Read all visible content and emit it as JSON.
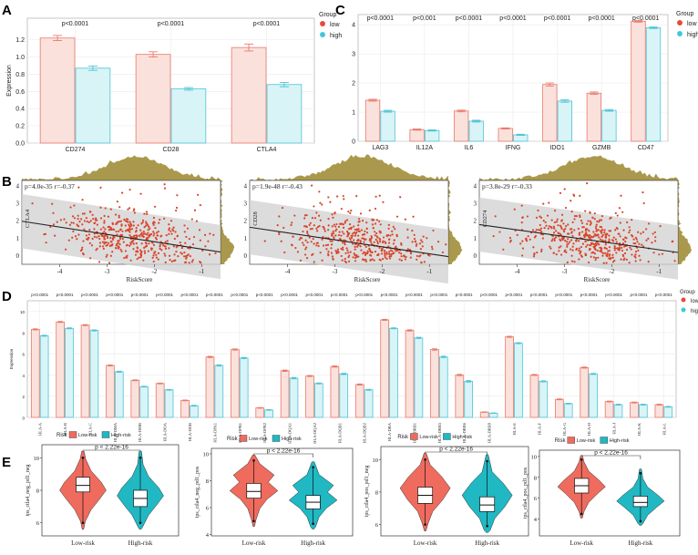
{
  "figure": {
    "panel_letters": [
      "A",
      "B",
      "C",
      "D",
      "E"
    ],
    "colors": {
      "low_fill": "#fbe1dc",
      "low_stroke": "#e8796a",
      "high_fill": "#d8f4f7",
      "high_stroke": "#4ec3d6",
      "scatter_point": "#d9452b",
      "density": "#a59442",
      "band": "#d0d0d0",
      "violin_low": "#ef6b5e",
      "violin_high": "#1fb8c3",
      "grid": "#ebebeb",
      "sig_low": "#e8493a",
      "sig_high": "#3fc7dc"
    }
  },
  "chart_data": [
    {
      "panel": "A",
      "type": "bar",
      "ylabel": "Expression",
      "ylim": [
        0,
        1.45
      ],
      "yticks": [
        "0.0",
        "0.2",
        "0.4",
        "0.6",
        "0.8",
        "1.0",
        "1.2"
      ],
      "categories": [
        "CD274",
        "CD28",
        "CTLA4"
      ],
      "pvalues": [
        "p<0.0001",
        "p<0.0001",
        "p<0.0001"
      ],
      "series": [
        {
          "name": "low",
          "values": [
            1.22,
            1.03,
            1.11
          ],
          "errors": [
            0.03,
            0.03,
            0.04
          ]
        },
        {
          "name": "high",
          "values": [
            0.87,
            0.63,
            0.68
          ],
          "errors": [
            0.025,
            0.015,
            0.025
          ]
        }
      ],
      "legend": {
        "title": "Group",
        "labels": [
          "low",
          "high"
        ],
        "position": "right"
      }
    },
    {
      "panel": "C",
      "type": "bar",
      "ylabel": "",
      "ylim": [
        0,
        4.35
      ],
      "yticks": [
        "0",
        "1",
        "2",
        "3",
        "4"
      ],
      "categories": [
        "LAG3",
        "IL12A",
        "IL6",
        "IFNG",
        "IDO1",
        "GZMB",
        "CD47"
      ],
      "pvalues": [
        "p<0.0001",
        "p<0.001",
        "p<0.0001",
        "p<0.0001",
        "p<0.0001",
        "p<0.0001",
        "p<0.0001"
      ],
      "series": [
        {
          "name": "low",
          "values": [
            1.41,
            0.4,
            1.04,
            0.44,
            1.95,
            1.65,
            4.12
          ],
          "errors": [
            0.03,
            0.02,
            0.03,
            0.02,
            0.05,
            0.04,
            0.03
          ]
        },
        {
          "name": "high",
          "values": [
            1.03,
            0.37,
            0.69,
            0.22,
            1.38,
            1.06,
            3.9
          ],
          "errors": [
            0.03,
            0.02,
            0.03,
            0.02,
            0.04,
            0.03,
            0.03
          ]
        }
      ],
      "legend": {
        "title": "Group",
        "labels": [
          "low",
          "high"
        ],
        "position": "right"
      }
    },
    {
      "panel": "B",
      "type": "scatter",
      "plots": [
        {
          "ylabel": "CTLA4",
          "xlabel": "RiskScore",
          "stat": "p=4.0e-35  r=-0.37",
          "xlim": [
            -4.8,
            -0.6
          ],
          "ylim": [
            -0.5,
            4.3
          ],
          "xticks": [
            "-4",
            "-3",
            "-2",
            "-1"
          ],
          "xtick_values": [
            -4,
            -3,
            -2,
            -1
          ],
          "yticks": [
            "0",
            "1",
            "2",
            "3",
            "4"
          ],
          "ytick_values": [
            0,
            1,
            2,
            3,
            4
          ],
          "line": {
            "slope": -0.42,
            "intercept": -0.05
          }
        },
        {
          "ylabel": "CD28",
          "xlabel": "RiskScore",
          "stat": "p=1.9e-48  r=-0.43",
          "xlim": [
            -4.8,
            -0.6
          ],
          "ylim": [
            -0.5,
            4.3
          ],
          "xticks": [
            "-4",
            "-3",
            "-2",
            "-1"
          ],
          "xtick_values": [
            -4,
            -3,
            -2,
            -1
          ],
          "yticks": [
            "0",
            "1",
            "2",
            "3",
            "4"
          ],
          "ytick_values": [
            0,
            1,
            2,
            3,
            4
          ],
          "line": {
            "slope": -0.4,
            "intercept": -0.3
          }
        },
        {
          "ylabel": "CD274",
          "xlabel": "RiskScore",
          "stat": "p=3.8e-29  r=-0.33",
          "xlim": [
            -4.8,
            -0.6
          ],
          "ylim": [
            -0.5,
            4.3
          ],
          "xticks": [
            "-4",
            "-3",
            "-2",
            "-1"
          ],
          "xtick_values": [
            -4,
            -3,
            -2,
            -1
          ],
          "yticks": [
            "0",
            "1",
            "2",
            "3",
            "4"
          ],
          "ytick_values": [
            0,
            1,
            2,
            3,
            4
          ],
          "line": {
            "slope": -0.38,
            "intercept": -0.05
          }
        }
      ]
    },
    {
      "panel": "D",
      "type": "bar",
      "ylabel": "Expression",
      "ylim": [
        0,
        11
      ],
      "yticks": [
        "0",
        "2",
        "4",
        "6",
        "8",
        "10"
      ],
      "categories": [
        "HLA-A",
        "HLA-B",
        "HLA-C",
        "HLA-DMA",
        "HLA-DMB",
        "HLA-DOA",
        "HLA-DOB",
        "HLA-DPA1",
        "HLA-DPB1",
        "HLA-DPB2",
        "HLA-DQA1",
        "HLA-DQA2",
        "HLA-DQB1",
        "HLA-DQB2",
        "HLA-DRA",
        "HLA-DRB1",
        "HLA-DRB5",
        "HLA-DRB6",
        "HLA-DRB9",
        "HLA-E",
        "HLA-F",
        "HLA-G",
        "HLA-H",
        "HLA-J",
        "HLA-K",
        "HLA-L"
      ],
      "pvalues": [
        "p<0.0001",
        "p<0.0001",
        "p<0.0001",
        "p<0.0001",
        "p<0.0001",
        "p<0.0001",
        "p<0.0001",
        "p<0.0001",
        "p<0.0001",
        "p<0.0001",
        "p<0.0001",
        "p<0.0001",
        "p<0.0001",
        "p<0.0001",
        "p<0.0001",
        "p<0.0001",
        "p<0.0001",
        "p<0.0001",
        "p<0.0001",
        "p<0.0001",
        "p<0.0001",
        "p<0.0001",
        "p<0.0001",
        "p<0.0001",
        "p<0.0001",
        "p<0.0001"
      ],
      "series": [
        {
          "name": "low",
          "values": [
            8.3,
            9.0,
            8.7,
            4.9,
            3.5,
            3.2,
            1.6,
            5.7,
            6.4,
            0.9,
            4.4,
            3.9,
            4.8,
            3.1,
            9.2,
            8.2,
            6.4,
            4.0,
            0.5,
            7.6,
            4.0,
            1.7,
            4.7,
            1.5,
            1.4,
            1.2
          ],
          "errors": [
            0.05,
            0.05,
            0.05,
            0.05,
            0.04,
            0.04,
            0.04,
            0.06,
            0.06,
            0.03,
            0.06,
            0.05,
            0.06,
            0.05,
            0.05,
            0.06,
            0.07,
            0.07,
            0.02,
            0.05,
            0.05,
            0.04,
            0.05,
            0.04,
            0.04,
            0.04
          ]
        },
        {
          "name": "high",
          "values": [
            7.7,
            8.4,
            8.2,
            4.3,
            2.9,
            2.6,
            1.1,
            4.9,
            5.6,
            0.7,
            3.7,
            3.2,
            4.1,
            2.6,
            8.4,
            7.5,
            5.7,
            3.4,
            0.4,
            7.0,
            3.4,
            1.3,
            4.1,
            1.2,
            1.2,
            1.0
          ],
          "errors": [
            0.05,
            0.05,
            0.05,
            0.05,
            0.04,
            0.04,
            0.04,
            0.06,
            0.06,
            0.03,
            0.06,
            0.05,
            0.06,
            0.05,
            0.05,
            0.06,
            0.07,
            0.07,
            0.02,
            0.05,
            0.05,
            0.04,
            0.05,
            0.04,
            0.04,
            0.04
          ]
        }
      ],
      "legend": {
        "title": "Group",
        "labels": [
          "low",
          "high"
        ],
        "position": "right"
      }
    },
    {
      "panel": "E",
      "type": "violin",
      "legend": {
        "title": "Risk",
        "labels": [
          "Low-risk",
          "High-risk"
        ],
        "position": "top"
      },
      "plots": [
        {
          "ylabel": "ips_ctla4_neg_pd1_neg",
          "ylim": [
            5.2,
            10.8
          ],
          "yticks": [
            "6",
            "8",
            "10"
          ],
          "ytick_values": [
            6,
            8,
            10
          ],
          "categories": [
            "Low-risk",
            "High-risk"
          ],
          "pvalue": "p < 2.22e-16",
          "boxes": [
            {
              "q1": 7.9,
              "median": 8.3,
              "q3": 8.8,
              "min": 6.0,
              "max": 10.0
            },
            {
              "q1": 7.0,
              "median": 7.5,
              "q3": 8.0,
              "min": 6.0,
              "max": 10.0
            }
          ]
        },
        {
          "ylabel": "ips_ctla4_neg_pd1_pos",
          "ylim": [
            3.9,
            10.4
          ],
          "yticks": [
            "4",
            "6",
            "8",
            "10"
          ],
          "ytick_values": [
            4,
            6,
            8,
            10
          ],
          "categories": [
            "Low-risk",
            "High-risk"
          ],
          "pvalue": "p < 2.22e-16",
          "boxes": [
            {
              "q1": 6.7,
              "median": 7.2,
              "q3": 7.8,
              "min": 5.0,
              "max": 9.5
            },
            {
              "q1": 5.9,
              "median": 6.4,
              "q3": 6.9,
              "min": 4.8,
              "max": 9.0
            }
          ]
        },
        {
          "ylabel": "ips_ctla4_pos_pd1_neg",
          "ylim": [
            5.3,
            10.8
          ],
          "yticks": [
            "6",
            "8",
            "10"
          ],
          "ytick_values": [
            6,
            8,
            10
          ],
          "categories": [
            "Low-risk",
            "High-risk"
          ],
          "pvalue": "p < 2.22e-16",
          "boxes": [
            {
              "q1": 7.3,
              "median": 7.8,
              "q3": 8.3,
              "min": 6.0,
              "max": 10.0
            },
            {
              "q1": 6.8,
              "median": 7.2,
              "q3": 7.7,
              "min": 5.9,
              "max": 9.9
            }
          ]
        },
        {
          "ylabel": "ips_ctla4_pos_pd1_pos",
          "ylim": [
            2.4,
            10.6
          ],
          "yticks": [
            "4",
            "6",
            "8",
            "10"
          ],
          "ytick_values": [
            4,
            6,
            8,
            10
          ],
          "categories": [
            "Low-risk",
            "High-risk"
          ],
          "pvalue": "p < 2.22e-16",
          "boxes": [
            {
              "q1": 6.5,
              "median": 7.2,
              "q3": 7.9,
              "min": 4.5,
              "max": 9.7
            },
            {
              "q1": 5.2,
              "median": 5.6,
              "q3": 6.2,
              "min": 3.8,
              "max": 8.4
            }
          ]
        }
      ]
    }
  ]
}
